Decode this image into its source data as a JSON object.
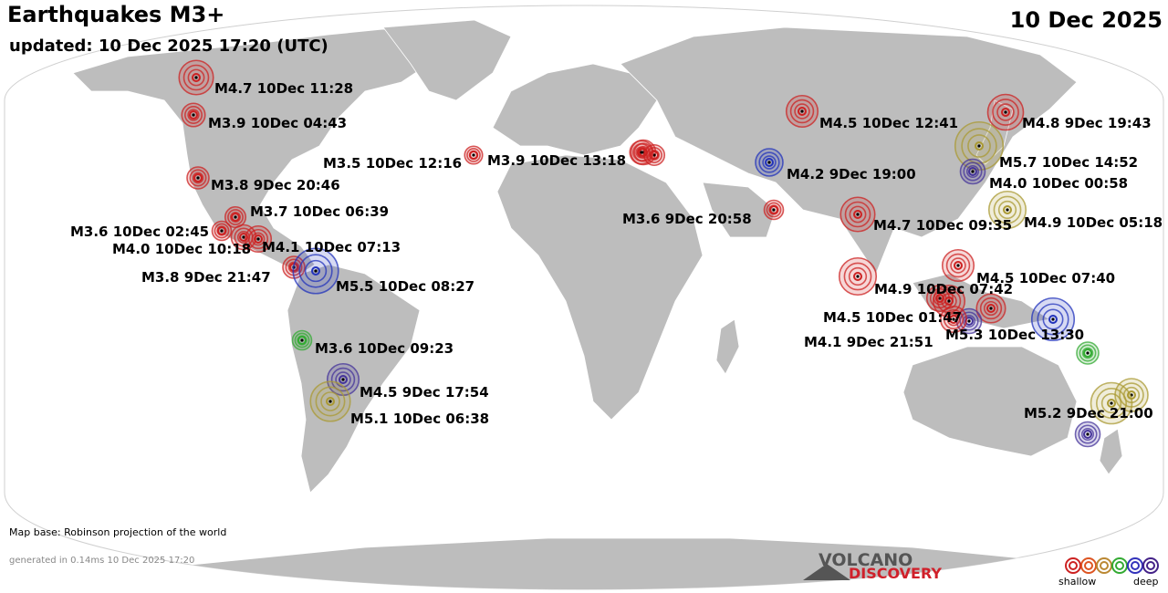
{
  "header": {
    "title": "Earthquakes M3+",
    "updated": "updated: 10 Dec 2025 17:20 (UTC)",
    "date": "10 Dec 2025"
  },
  "footer": {
    "map_base": "Map base: Robinson projection of the world",
    "generated": "generated in 0.14ms 10 Dec 2025 17:20",
    "logo_line1": "VOLCANO",
    "logo_line2": "DISCOVERY"
  },
  "legend": {
    "shallow_label": "shallow",
    "deep_label": "deep",
    "colors": [
      "#cc2222",
      "#dd5522",
      "#bb8833",
      "#33aa33",
      "#3333bb",
      "#442288"
    ]
  },
  "depth_colors": {
    "shallow": "#cc2222",
    "intermediate": "#aa9933",
    "moderate": "#33aa33",
    "deep": "#2233bb",
    "very_deep": "#443399"
  },
  "earthquakes": [
    {
      "label": "M4.7 10Dec 11:28",
      "magnitude": 4.7,
      "depth_class": "shallow"
    },
    {
      "label": "M3.9 10Dec 04:43",
      "magnitude": 3.9,
      "depth_class": "shallow"
    },
    {
      "label": "M3.8  9Dec 20:46",
      "magnitude": 3.8,
      "depth_class": "shallow"
    },
    {
      "label": "M3.7 10Dec 06:39",
      "magnitude": 3.7,
      "depth_class": "shallow"
    },
    {
      "label": "M3.6 10Dec 02:45",
      "magnitude": 3.6,
      "depth_class": "shallow"
    },
    {
      "label": "M4.0 10Dec 10:18",
      "magnitude": 4.0,
      "depth_class": "shallow"
    },
    {
      "label": "M4.1 10Dec 07:13",
      "magnitude": 4.1,
      "depth_class": "shallow"
    },
    {
      "label": "M3.8  9Dec 21:47",
      "magnitude": 3.8,
      "depth_class": "shallow"
    },
    {
      "label": "M5.5 10Dec 08:27",
      "magnitude": 5.5,
      "depth_class": "deep"
    },
    {
      "label": "M3.6 10Dec 09:23",
      "magnitude": 3.6,
      "depth_class": "moderate"
    },
    {
      "label": "M4.5  9Dec 17:54",
      "magnitude": 4.5,
      "depth_class": "very_deep"
    },
    {
      "label": "M5.1 10Dec 06:38",
      "magnitude": 5.1,
      "depth_class": "intermediate"
    },
    {
      "label": "M3.5 10Dec 12:16",
      "magnitude": 3.5,
      "depth_class": "shallow"
    },
    {
      "label": "M3.9 10Dec 13:18",
      "magnitude": 3.9,
      "depth_class": "shallow"
    },
    {
      "label": "M4.5 10Dec 12:41",
      "magnitude": 4.5,
      "depth_class": "shallow"
    },
    {
      "label": "M4.2  9Dec 19:00",
      "magnitude": 4.2,
      "depth_class": "deep"
    },
    {
      "label": "M3.6  9Dec 20:58",
      "magnitude": 3.6,
      "depth_class": "shallow"
    },
    {
      "label": "M4.7 10Dec 09:35",
      "magnitude": 4.7,
      "depth_class": "shallow"
    },
    {
      "label": "M4.8  9Dec 19:43",
      "magnitude": 4.8,
      "depth_class": "shallow"
    },
    {
      "label": "M5.7 10Dec 14:52",
      "magnitude": 5.7,
      "depth_class": "intermediate"
    },
    {
      "label": "M4.0 10Dec 00:58",
      "magnitude": 4.0,
      "depth_class": "very_deep"
    },
    {
      "label": "M4.9 10Dec 05:18",
      "magnitude": 4.9,
      "depth_class": "intermediate"
    },
    {
      "label": "M4.5 10Dec 07:40",
      "magnitude": 4.5,
      "depth_class": "shallow"
    },
    {
      "label": "M4.9 10Dec 07:42",
      "magnitude": 4.9,
      "depth_class": "shallow"
    },
    {
      "label": "M4.5 10Dec 01:47",
      "magnitude": 4.5,
      "depth_class": "shallow"
    },
    {
      "label": "M4.1  9Dec 21:51",
      "magnitude": 4.1,
      "depth_class": "shallow"
    },
    {
      "label": "M5.3 10Dec 13:30",
      "magnitude": 5.3,
      "depth_class": "deep"
    },
    {
      "label": "M5.2  9Dec 21:00",
      "magnitude": 5.2,
      "depth_class": "intermediate"
    }
  ],
  "extra_markers": [
    {
      "magnitude": 4.0,
      "depth_class": "shallow"
    },
    {
      "magnitude": 3.7,
      "depth_class": "shallow"
    },
    {
      "magnitude": 4.1,
      "depth_class": "shallow"
    },
    {
      "magnitude": 4.3,
      "depth_class": "shallow"
    },
    {
      "magnitude": 4.0,
      "depth_class": "very_deep"
    },
    {
      "magnitude": 3.8,
      "depth_class": "moderate"
    },
    {
      "magnitude": 4.6,
      "depth_class": "intermediate"
    },
    {
      "magnitude": 4.0,
      "depth_class": "very_deep"
    }
  ]
}
